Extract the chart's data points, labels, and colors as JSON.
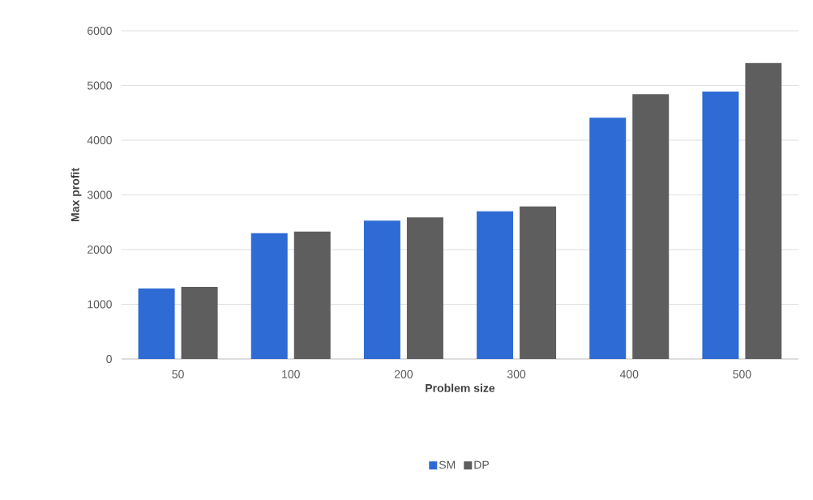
{
  "chart_data": {
    "type": "bar",
    "xlabel": "Problem size",
    "ylabel": "Max profit",
    "categories": [
      "50",
      "100",
      "200",
      "300",
      "400",
      "500"
    ],
    "series": [
      {
        "name": "SM",
        "color": "#2e6bd4",
        "values": [
          1290,
          2300,
          2530,
          2700,
          4410,
          4890
        ]
      },
      {
        "name": "DP",
        "color": "#5e5e5e",
        "values": [
          1320,
          2330,
          2590,
          2790,
          4840,
          5410
        ]
      }
    ],
    "ylim": [
      0,
      6000
    ],
    "yticks": [
      0,
      1000,
      2000,
      3000,
      4000,
      5000,
      6000
    ],
    "grid": "y",
    "legend": "bottom"
  }
}
